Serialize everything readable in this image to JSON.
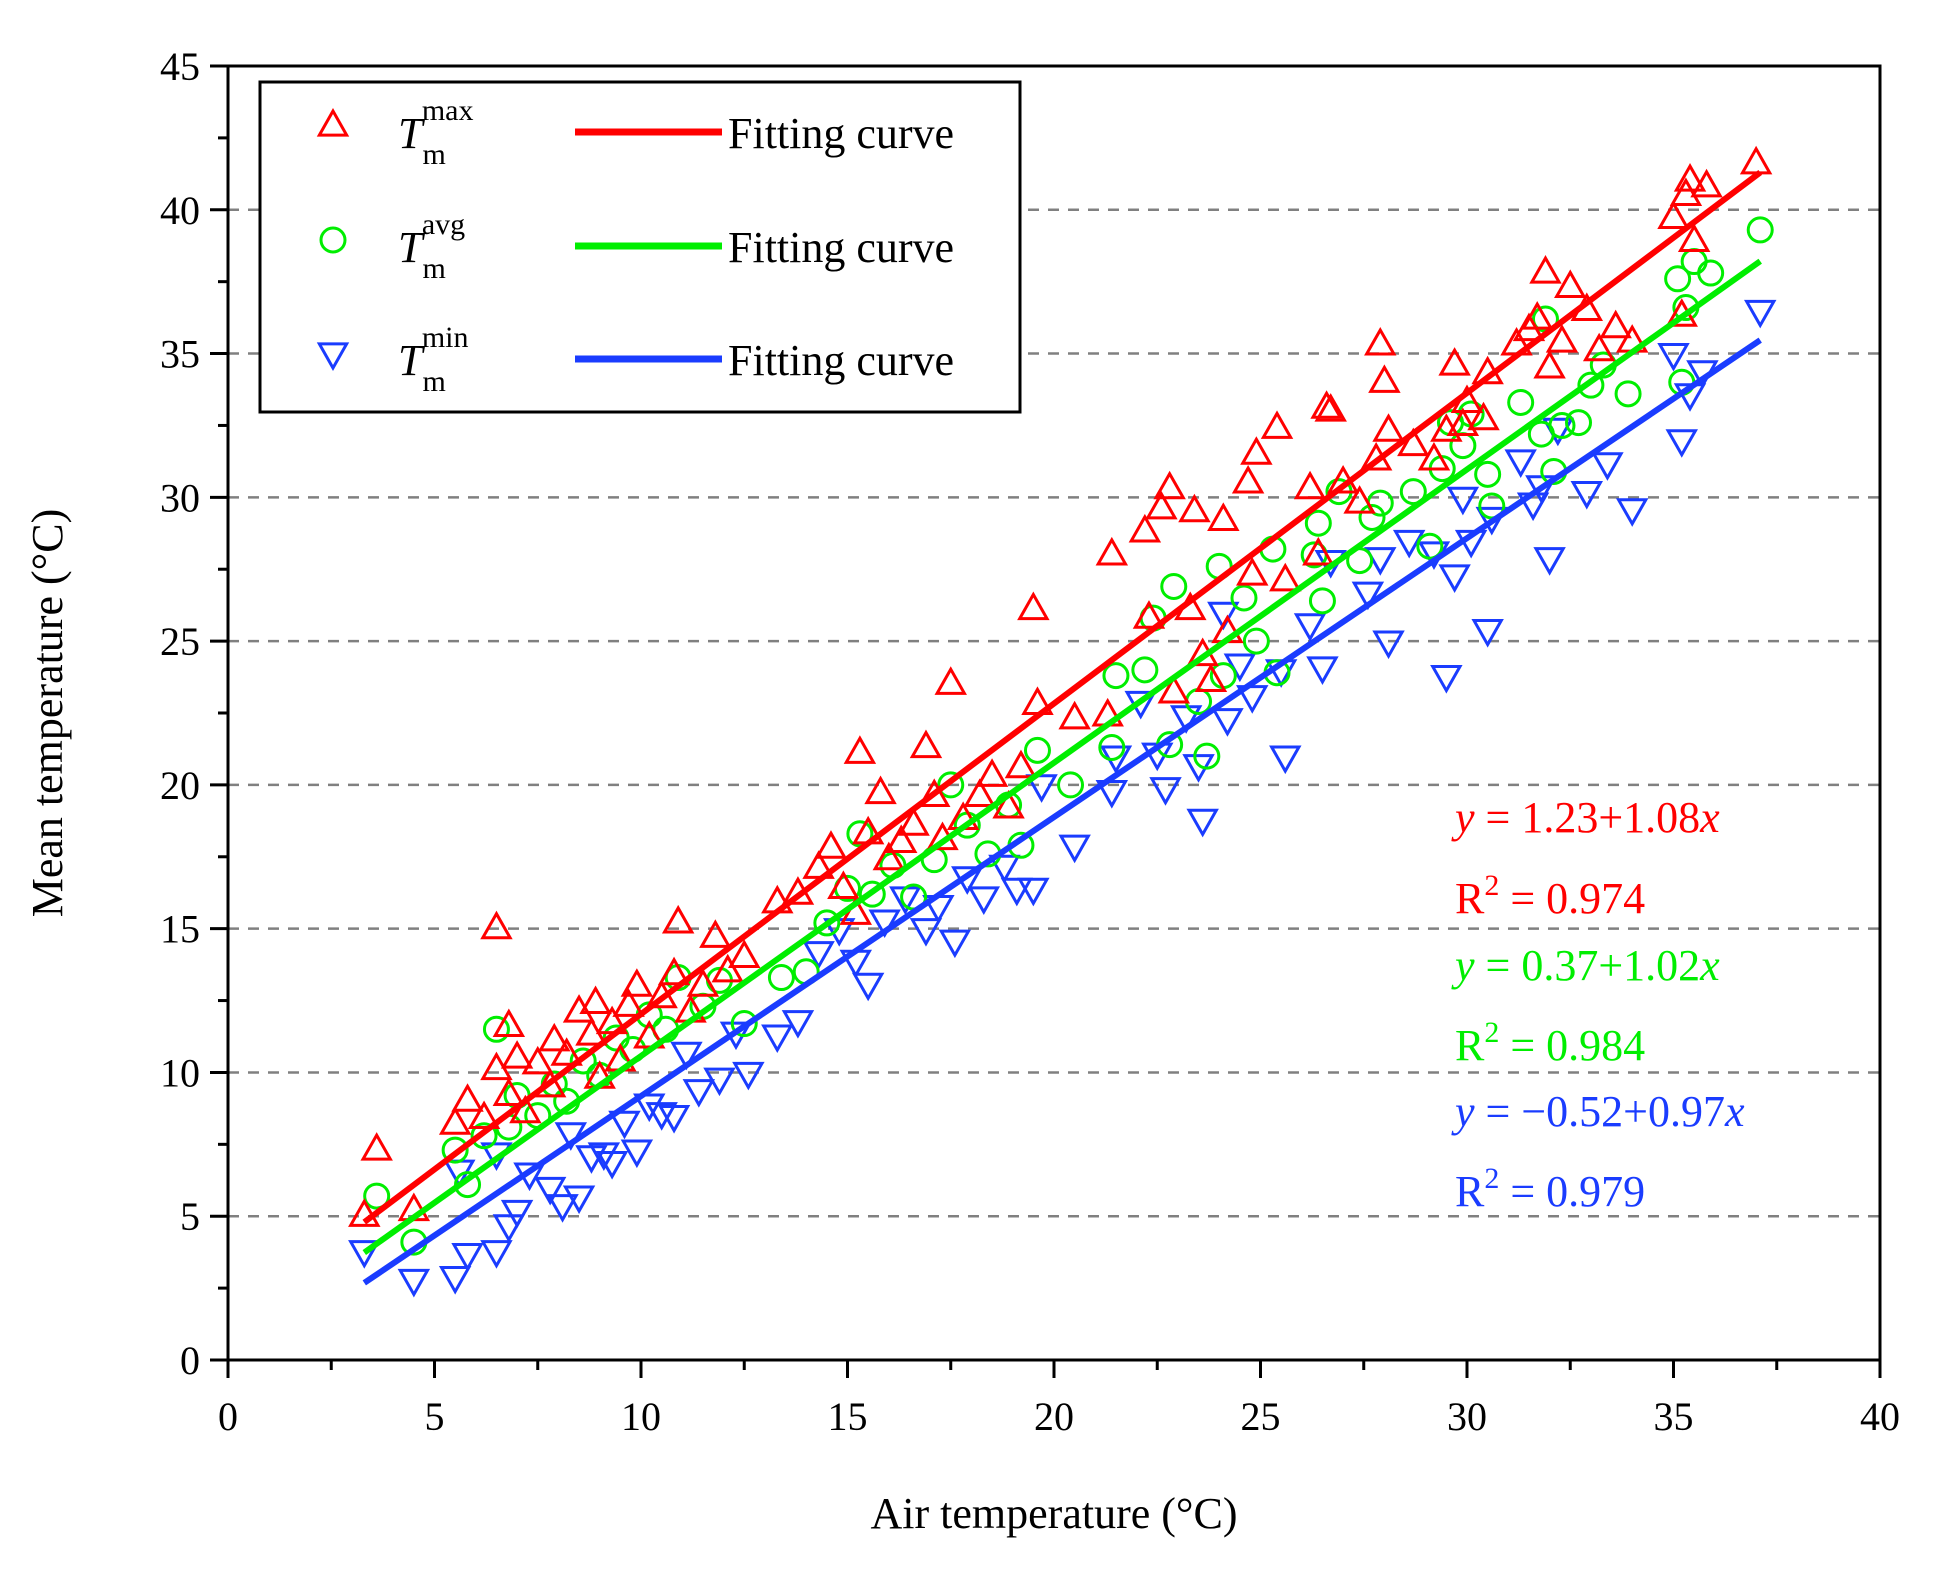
{
  "chart_data": {
    "type": "scatter",
    "title": "",
    "xlabel": "Air temperature (°C)",
    "ylabel": "Mean temperature (°C)",
    "xlim": [
      0,
      40
    ],
    "ylim": [
      0,
      45
    ],
    "x_ticks": [
      0,
      5,
      10,
      15,
      20,
      25,
      30,
      35,
      40
    ],
    "y_ticks": [
      0,
      5,
      10,
      15,
      20,
      25,
      30,
      35,
      40,
      45
    ],
    "y_gridlines": [
      5,
      10,
      15,
      20,
      25,
      30,
      35,
      40
    ],
    "grid": "dashed horizontal",
    "legend_position": "top-left",
    "series": [
      {
        "name": "Tm max",
        "symbol": "T",
        "subscript": "m",
        "superscript": "max",
        "marker": "triangle-up",
        "color": "#ff0000",
        "fit_label": "Fitting curve",
        "fit": {
          "intercept": 1.23,
          "slope": 1.08,
          "x_range": [
            3.3,
            37.1
          ]
        },
        "equation": {
          "y": "y",
          "eq": " = 1.23+1.08",
          "x": "x"
        },
        "r2": {
          "R": "R",
          "sup": "2",
          "value": " = 0.974"
        },
        "points": [
          [
            3.3,
            5.0
          ],
          [
            3.6,
            7.3
          ],
          [
            4.5,
            5.2
          ],
          [
            5.5,
            8.2
          ],
          [
            5.8,
            9.0
          ],
          [
            6.2,
            8.4
          ],
          [
            6.5,
            10.1
          ],
          [
            6.5,
            15.0
          ],
          [
            6.8,
            9.2
          ],
          [
            6.8,
            11.6
          ],
          [
            7.0,
            10.5
          ],
          [
            7.2,
            8.6
          ],
          [
            7.5,
            10.3
          ],
          [
            7.8,
            9.5
          ],
          [
            7.9,
            11.1
          ],
          [
            8.2,
            10.6
          ],
          [
            8.5,
            12.1
          ],
          [
            8.8,
            11.3
          ],
          [
            8.9,
            12.4
          ],
          [
            9.0,
            9.8
          ],
          [
            9.3,
            11.7
          ],
          [
            9.5,
            10.4
          ],
          [
            9.7,
            12.3
          ],
          [
            9.9,
            13.0
          ],
          [
            10.2,
            11.2
          ],
          [
            10.5,
            12.6
          ],
          [
            10.8,
            13.4
          ],
          [
            10.9,
            15.2
          ],
          [
            11.2,
            12.1
          ],
          [
            11.5,
            13.0
          ],
          [
            11.8,
            14.7
          ],
          [
            12.1,
            13.5
          ],
          [
            12.5,
            14.0
          ],
          [
            13.3,
            15.9
          ],
          [
            13.8,
            16.2
          ],
          [
            14.3,
            17.1
          ],
          [
            14.6,
            17.8
          ],
          [
            14.9,
            16.4
          ],
          [
            15.2,
            15.5
          ],
          [
            15.3,
            21.1
          ],
          [
            15.5,
            18.3
          ],
          [
            15.8,
            19.7
          ],
          [
            16.0,
            17.4
          ],
          [
            16.3,
            18.0
          ],
          [
            16.6,
            18.6
          ],
          [
            16.9,
            21.3
          ],
          [
            17.1,
            19.6
          ],
          [
            17.3,
            18.1
          ],
          [
            17.5,
            23.5
          ],
          [
            17.8,
            18.8
          ],
          [
            18.2,
            19.6
          ],
          [
            18.5,
            20.3
          ],
          [
            18.9,
            19.2
          ],
          [
            19.2,
            20.6
          ],
          [
            19.5,
            26.1
          ],
          [
            19.6,
            22.8
          ],
          [
            20.5,
            22.3
          ],
          [
            21.3,
            22.4
          ],
          [
            21.4,
            28.0
          ],
          [
            22.2,
            28.8
          ],
          [
            22.3,
            25.8
          ],
          [
            22.6,
            29.6
          ],
          [
            22.8,
            30.3
          ],
          [
            22.9,
            23.2
          ],
          [
            23.3,
            26.1
          ],
          [
            23.4,
            29.5
          ],
          [
            23.6,
            24.5
          ],
          [
            23.8,
            23.6
          ],
          [
            24.1,
            29.2
          ],
          [
            24.2,
            25.3
          ],
          [
            24.7,
            30.5
          ],
          [
            24.9,
            31.5
          ],
          [
            24.8,
            27.3
          ],
          [
            25.4,
            32.4
          ],
          [
            25.6,
            27.1
          ],
          [
            26.2,
            30.3
          ],
          [
            26.4,
            28.0
          ],
          [
            26.6,
            33.1
          ],
          [
            26.7,
            33.0
          ],
          [
            27.0,
            30.5
          ],
          [
            27.4,
            29.8
          ],
          [
            27.8,
            31.3
          ],
          [
            27.9,
            35.3
          ],
          [
            28.0,
            34.0
          ],
          [
            28.1,
            32.3
          ],
          [
            28.7,
            31.8
          ],
          [
            29.2,
            31.3
          ],
          [
            29.5,
            32.3
          ],
          [
            29.7,
            34.6
          ],
          [
            29.9,
            32.5
          ],
          [
            30.0,
            33.3
          ],
          [
            30.4,
            32.7
          ],
          [
            30.5,
            34.3
          ],
          [
            31.2,
            35.3
          ],
          [
            31.5,
            35.8
          ],
          [
            31.7,
            36.2
          ],
          [
            31.9,
            37.8
          ],
          [
            32.0,
            34.5
          ],
          [
            32.3,
            35.4
          ],
          [
            32.5,
            37.3
          ],
          [
            32.9,
            36.5
          ],
          [
            33.2,
            35.1
          ],
          [
            33.6,
            35.9
          ],
          [
            34.0,
            35.4
          ],
          [
            35.0,
            39.7
          ],
          [
            35.3,
            40.5
          ],
          [
            35.4,
            41.0
          ],
          [
            35.2,
            36.3
          ],
          [
            35.5,
            38.9
          ],
          [
            35.8,
            40.8
          ],
          [
            37.0,
            41.6
          ]
        ]
      },
      {
        "name": "Tm avg",
        "symbol": "T",
        "subscript": "m",
        "superscript": "avg",
        "marker": "circle",
        "color": "#00ee00",
        "fit_label": "Fitting curve",
        "fit": {
          "intercept": 0.37,
          "slope": 1.02,
          "x_range": [
            3.3,
            37.1
          ]
        },
        "equation": {
          "y": "y",
          "eq": " = 0.37+1.02",
          "x": "x"
        },
        "r2": {
          "R": "R",
          "sup": "2",
          "value": " = 0.984"
        },
        "points": [
          [
            3.6,
            5.7
          ],
          [
            4.5,
            4.1
          ],
          [
            5.5,
            7.3
          ],
          [
            5.8,
            6.1
          ],
          [
            6.2,
            7.8
          ],
          [
            6.5,
            11.5
          ],
          [
            6.8,
            8.1
          ],
          [
            7.0,
            9.2
          ],
          [
            7.5,
            8.5
          ],
          [
            7.9,
            9.6
          ],
          [
            8.2,
            9.0
          ],
          [
            8.6,
            10.4
          ],
          [
            9.0,
            9.9
          ],
          [
            9.4,
            11.2
          ],
          [
            9.8,
            10.8
          ],
          [
            10.2,
            12.0
          ],
          [
            10.6,
            11.5
          ],
          [
            10.9,
            13.3
          ],
          [
            11.5,
            12.3
          ],
          [
            11.9,
            13.2
          ],
          [
            12.5,
            11.7
          ],
          [
            13.4,
            13.3
          ],
          [
            14.0,
            13.5
          ],
          [
            14.5,
            15.2
          ],
          [
            15.0,
            16.4
          ],
          [
            15.3,
            18.3
          ],
          [
            15.6,
            16.2
          ],
          [
            16.1,
            17.2
          ],
          [
            16.6,
            16.1
          ],
          [
            17.1,
            17.4
          ],
          [
            17.5,
            20.0
          ],
          [
            17.9,
            18.6
          ],
          [
            18.4,
            17.6
          ],
          [
            18.9,
            19.3
          ],
          [
            19.2,
            17.9
          ],
          [
            19.6,
            21.2
          ],
          [
            20.4,
            20.0
          ],
          [
            21.4,
            21.3
          ],
          [
            21.5,
            23.8
          ],
          [
            22.2,
            24.0
          ],
          [
            22.4,
            25.8
          ],
          [
            22.8,
            21.4
          ],
          [
            22.9,
            26.9
          ],
          [
            23.5,
            22.9
          ],
          [
            23.7,
            21.0
          ],
          [
            24.0,
            27.6
          ],
          [
            24.1,
            23.8
          ],
          [
            24.6,
            26.5
          ],
          [
            24.9,
            25.0
          ],
          [
            25.4,
            23.9
          ],
          [
            25.3,
            28.2
          ],
          [
            26.3,
            28.0
          ],
          [
            26.4,
            29.1
          ],
          [
            26.5,
            26.4
          ],
          [
            26.9,
            30.2
          ],
          [
            27.4,
            27.8
          ],
          [
            27.7,
            29.3
          ],
          [
            27.9,
            29.8
          ],
          [
            28.7,
            30.2
          ],
          [
            29.1,
            28.3
          ],
          [
            29.4,
            31.0
          ],
          [
            29.6,
            32.6
          ],
          [
            29.9,
            31.8
          ],
          [
            30.1,
            32.9
          ],
          [
            30.5,
            30.8
          ],
          [
            30.6,
            29.7
          ],
          [
            31.3,
            33.3
          ],
          [
            31.8,
            32.2
          ],
          [
            31.9,
            36.2
          ],
          [
            32.1,
            30.9
          ],
          [
            32.3,
            32.5
          ],
          [
            32.7,
            32.6
          ],
          [
            33.0,
            33.9
          ],
          [
            33.3,
            34.6
          ],
          [
            33.9,
            33.6
          ],
          [
            35.1,
            37.6
          ],
          [
            35.3,
            36.6
          ],
          [
            35.5,
            38.2
          ],
          [
            35.2,
            34.0
          ],
          [
            35.9,
            37.8
          ],
          [
            37.1,
            39.3
          ]
        ]
      },
      {
        "name": "Tm min",
        "symbol": "T",
        "subscript": "m",
        "superscript": "min",
        "marker": "triangle-down",
        "color": "#1a3cff",
        "fit_label": "Fitting curve",
        "fit": {
          "intercept": -0.52,
          "slope": 0.97,
          "x_range": [
            3.3,
            37.1
          ]
        },
        "equation": {
          "y": "y",
          "eq": " = −0.52+0.97",
          "x": "x"
        },
        "r2": {
          "R": "R",
          "sup": "2",
          "value": " = 0.979"
        },
        "points": [
          [
            3.3,
            3.8
          ],
          [
            4.5,
            2.8
          ],
          [
            5.5,
            2.9
          ],
          [
            5.6,
            6.6
          ],
          [
            5.8,
            3.7
          ],
          [
            6.5,
            3.8
          ],
          [
            6.5,
            7.2
          ],
          [
            6.8,
            4.7
          ],
          [
            7.0,
            5.2
          ],
          [
            7.3,
            6.5
          ],
          [
            7.8,
            6.0
          ],
          [
            8.1,
            5.4
          ],
          [
            8.5,
            5.7
          ],
          [
            8.3,
            7.9
          ],
          [
            8.8,
            7.1
          ],
          [
            9.1,
            7.2
          ],
          [
            9.3,
            6.9
          ],
          [
            9.6,
            8.3
          ],
          [
            9.9,
            7.3
          ],
          [
            10.2,
            8.9
          ],
          [
            10.5,
            8.6
          ],
          [
            10.8,
            8.5
          ],
          [
            11.1,
            10.7
          ],
          [
            11.4,
            9.4
          ],
          [
            11.9,
            9.8
          ],
          [
            12.3,
            11.4
          ],
          [
            12.6,
            10.0
          ],
          [
            13.3,
            11.3
          ],
          [
            13.8,
            11.8
          ],
          [
            14.3,
            14.2
          ],
          [
            14.8,
            15.0
          ],
          [
            15.2,
            13.9
          ],
          [
            15.5,
            13.1
          ],
          [
            15.9,
            15.3
          ],
          [
            16.4,
            16.1
          ],
          [
            16.9,
            15.0
          ],
          [
            17.2,
            15.8
          ],
          [
            17.6,
            14.6
          ],
          [
            17.9,
            16.8
          ],
          [
            18.3,
            16.1
          ],
          [
            18.8,
            17.2
          ],
          [
            19.1,
            16.4
          ],
          [
            19.5,
            16.4
          ],
          [
            19.7,
            20.0
          ],
          [
            20.5,
            17.9
          ],
          [
            21.4,
            19.8
          ],
          [
            21.5,
            21.0
          ],
          [
            22.1,
            22.9
          ],
          [
            22.5,
            21.1
          ],
          [
            22.7,
            19.9
          ],
          [
            23.2,
            22.4
          ],
          [
            23.5,
            20.7
          ],
          [
            23.6,
            18.8
          ],
          [
            24.1,
            26.0
          ],
          [
            24.2,
            22.3
          ],
          [
            24.5,
            24.2
          ],
          [
            24.8,
            23.1
          ],
          [
            25.5,
            24.0
          ],
          [
            25.6,
            21.0
          ],
          [
            26.2,
            25.6
          ],
          [
            26.5,
            24.1
          ],
          [
            26.7,
            27.8
          ],
          [
            27.6,
            26.7
          ],
          [
            27.9,
            27.9
          ],
          [
            28.1,
            25.0
          ],
          [
            28.6,
            28.5
          ],
          [
            29.2,
            28.1
          ],
          [
            29.5,
            23.8
          ],
          [
            29.7,
            27.3
          ],
          [
            29.9,
            30.0
          ],
          [
            30.1,
            28.5
          ],
          [
            30.5,
            25.4
          ],
          [
            30.6,
            29.3
          ],
          [
            31.3,
            31.3
          ],
          [
            31.6,
            29.8
          ],
          [
            31.8,
            30.4
          ],
          [
            32.0,
            27.9
          ],
          [
            32.2,
            32.4
          ],
          [
            32.9,
            30.2
          ],
          [
            33.4,
            31.2
          ],
          [
            34.0,
            29.6
          ],
          [
            35.0,
            35.0
          ],
          [
            35.2,
            32.0
          ],
          [
            35.4,
            33.6
          ],
          [
            35.7,
            34.4
          ],
          [
            37.1,
            36.5
          ]
        ]
      }
    ]
  }
}
